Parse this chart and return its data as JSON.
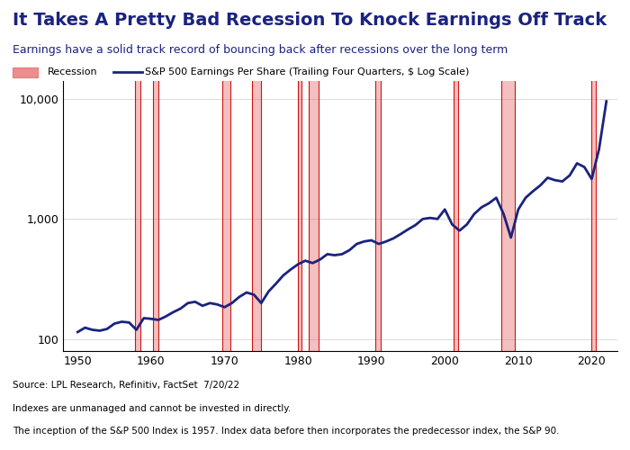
{
  "title": "It Takes A Pretty Bad Recession To Knock Earnings Off Track",
  "subtitle": "Earnings have a solid track record of bouncing back after recessions over the long term",
  "title_color": "#1a237e",
  "subtitle_color": "#1a237e",
  "line_color": "#1a237e",
  "recession_color": "#e57373",
  "recession_alpha": 0.45,
  "ylabel_ticks": [
    100,
    1000,
    10000
  ],
  "ylabel_labels": [
    "100",
    "1,000",
    "10,000"
  ],
  "ylim": [
    80,
    14000
  ],
  "xlim": [
    1948,
    2023.5
  ],
  "xticks": [
    1950,
    1960,
    1970,
    1980,
    1990,
    2000,
    2010,
    2020
  ],
  "footer_lines": [
    "Source: LPL Research, Refinitiv, FactSet  7/20/22",
    "Indexes are unmanaged and cannot be invested in directly.",
    "The inception of the S&P 500 Index is 1957. Index data before then incorporates the predecessor index, the S&P 90."
  ],
  "recessions": [
    [
      1957.75,
      1958.5
    ],
    [
      1960.25,
      1961.0
    ],
    [
      1969.75,
      1970.75
    ],
    [
      1973.75,
      1975.0
    ],
    [
      1980.0,
      1980.5
    ],
    [
      1981.5,
      1982.75
    ],
    [
      1990.5,
      1991.25
    ],
    [
      2001.25,
      2001.75
    ],
    [
      2007.75,
      2009.5
    ],
    [
      2020.0,
      2020.5
    ]
  ],
  "eps_data": {
    "years": [
      1950,
      1951,
      1952,
      1953,
      1954,
      1955,
      1956,
      1957,
      1958,
      1959,
      1960,
      1961,
      1962,
      1963,
      1964,
      1965,
      1966,
      1967,
      1968,
      1969,
      1970,
      1971,
      1972,
      1973,
      1974,
      1975,
      1976,
      1977,
      1978,
      1979,
      1980,
      1981,
      1982,
      1983,
      1984,
      1985,
      1986,
      1987,
      1988,
      1989,
      1990,
      1991,
      1992,
      1993,
      1994,
      1995,
      1996,
      1997,
      1998,
      1999,
      2000,
      2001,
      2002,
      2003,
      2004,
      2005,
      2006,
      2007,
      2008,
      2009,
      2010,
      2011,
      2012,
      2013,
      2014,
      2015,
      2016,
      2017,
      2018,
      2019,
      2020,
      2021,
      2022
    ],
    "values": [
      115,
      125,
      120,
      118,
      122,
      135,
      140,
      138,
      120,
      150,
      148,
      145,
      155,
      168,
      180,
      200,
      205,
      190,
      200,
      195,
      185,
      200,
      225,
      245,
      235,
      200,
      250,
      290,
      340,
      380,
      420,
      450,
      430,
      460,
      510,
      500,
      510,
      550,
      620,
      650,
      665,
      620,
      650,
      690,
      750,
      820,
      890,
      1000,
      1020,
      1000,
      1200,
      900,
      800,
      900,
      1100,
      1250,
      1350,
      1500,
      1100,
      700,
      1200,
      1500,
      1700,
      1900,
      2200,
      2100,
      2050,
      2300,
      2900,
      2700,
      2150,
      3800,
      9500
    ]
  }
}
